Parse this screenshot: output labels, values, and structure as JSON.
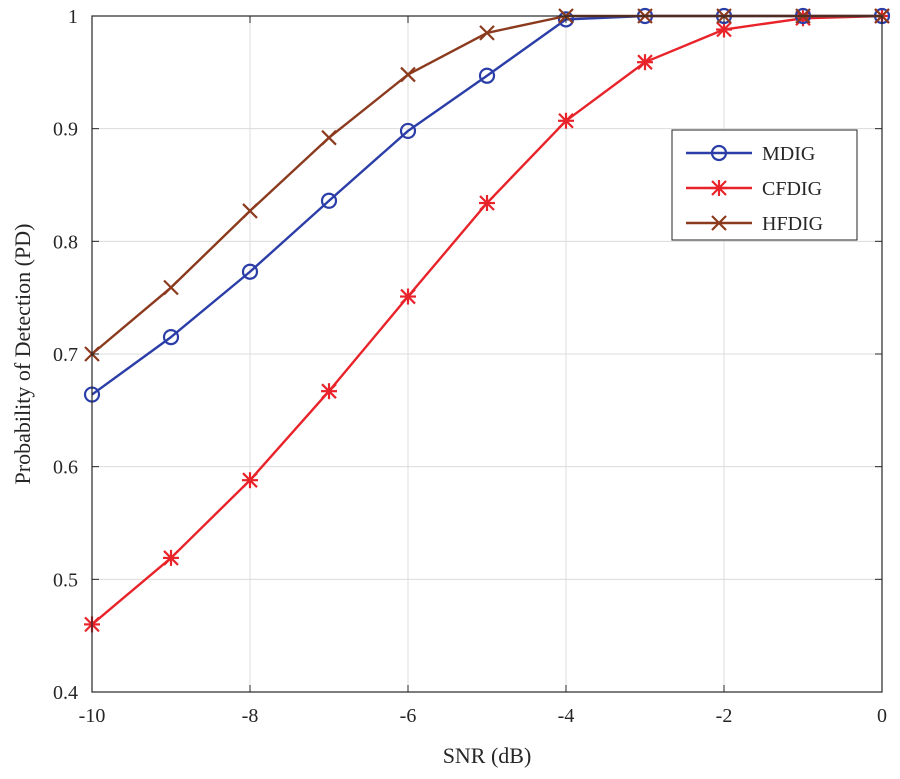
{
  "chart_data": {
    "type": "line",
    "xlabel": "SNR (dB)",
    "ylabel": "Probability of Detection (PD)",
    "xlim": [
      -10,
      0
    ],
    "ylim": [
      0.4,
      1.0
    ],
    "x_ticks": [
      -10,
      -8,
      -6,
      -4,
      -2,
      0
    ],
    "x_tick_labels": [
      "-10",
      "-8",
      "-6",
      "-4",
      "-2",
      "0"
    ],
    "y_ticks": [
      0.4,
      0.5,
      0.6,
      0.7,
      0.8,
      0.9,
      1.0
    ],
    "y_tick_labels": [
      "0.4",
      "0.5",
      "0.6",
      "0.7",
      "0.8",
      "0.9",
      "1"
    ],
    "grid": true,
    "legend_position": "upper-right",
    "x": [
      -10,
      -9,
      -8,
      -7,
      -6,
      -5,
      -4,
      -3,
      -2,
      -1,
      0
    ],
    "series": [
      {
        "name": "MDIG",
        "color": "#2b3ea8",
        "marker": "circle",
        "values": [
          0.664,
          0.715,
          0.773,
          0.836,
          0.898,
          0.947,
          0.997,
          1.0,
          1.0,
          1.0,
          1.0
        ]
      },
      {
        "name": "CFDIG",
        "color": "#e8232a",
        "marker": "asterisk",
        "values": [
          0.46,
          0.519,
          0.588,
          0.667,
          0.751,
          0.834,
          0.907,
          0.959,
          0.988,
          0.998,
          1.0
        ]
      },
      {
        "name": "HFDIG",
        "color": "#8b3a1e",
        "marker": "x",
        "values": [
          0.7,
          0.759,
          0.827,
          0.892,
          0.948,
          0.985,
          1.0,
          1.0,
          1.0,
          1.0,
          1.0
        ]
      }
    ]
  }
}
